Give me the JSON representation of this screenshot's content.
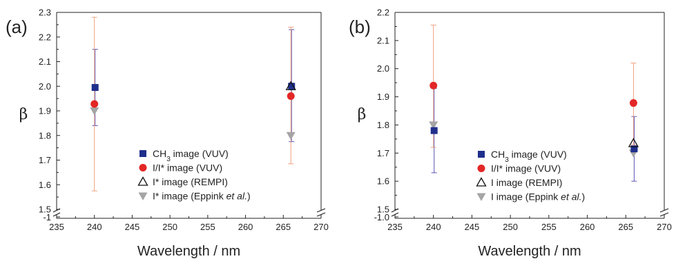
{
  "chart_data": [
    {
      "type": "scatter",
      "panel_label": "(a)",
      "xlabel": "Wavelength / nm",
      "ylabel": "β",
      "xlim": [
        235,
        270
      ],
      "ylim": [
        1.5,
        2.3
      ],
      "yticks": [
        "1.5",
        "1.6",
        "1.7",
        "1.8",
        "1.9",
        "2.0",
        "2.1",
        "2.2",
        "2.3"
      ],
      "ybreak_label": "-1",
      "xticks": [
        "235",
        "240",
        "245",
        "250",
        "255",
        "260",
        "265",
        "270"
      ],
      "legend_position": "bottom-right",
      "series": [
        {
          "name_parts": [
            "CH",
            "3",
            " image (VUV)"
          ],
          "marker": "square",
          "color": "#1f2f8c",
          "err_color": "#5a55b5",
          "points": [
            {
              "x": 240,
              "y": 1.995,
              "lo": 1.84,
              "hi": 2.15
            },
            {
              "x": 266,
              "y": 2.0,
              "lo": 1.775,
              "hi": 2.23
            }
          ]
        },
        {
          "name_parts": [
            "I/I* image (VUV)"
          ],
          "marker": "circle",
          "color": "#e32626",
          "err_color": "#f0a080",
          "points": [
            {
              "x": 240,
              "y": 1.928,
              "lo": 1.575,
              "hi": 2.28
            },
            {
              "x": 266,
              "y": 1.96,
              "lo": 1.685,
              "hi": 2.24
            }
          ]
        },
        {
          "name_parts": [
            "I* image (REMPI)"
          ],
          "marker": "triangle-open",
          "color": "#111111",
          "points": [
            {
              "x": 266,
              "y": 2.0
            }
          ]
        },
        {
          "name_parts": [
            "I* image (Eppink ",
            "et al.",
            ")"
          ],
          "marker": "triangle-down",
          "color": "#a5a5a5",
          "points": [
            {
              "x": 240,
              "y": 1.9
            },
            {
              "x": 266,
              "y": 1.8
            }
          ]
        }
      ]
    },
    {
      "type": "scatter",
      "panel_label": "(b)",
      "xlabel": "Wavelength / nm",
      "ylabel": "β",
      "xlim": [
        235,
        270
      ],
      "ylim": [
        1.5,
        2.2
      ],
      "yticks": [
        "1.5",
        "1.6",
        "1.7",
        "1.8",
        "1.9",
        "2.0",
        "2.1",
        "2.2"
      ],
      "ybreak_label": "-1.0",
      "xticks": [
        "235",
        "240",
        "245",
        "250",
        "255",
        "260",
        "265",
        "270"
      ],
      "legend_position": "bottom-right",
      "series": [
        {
          "name_parts": [
            "CH",
            "3",
            " image (VUV)"
          ],
          "marker": "square",
          "color": "#1f2f8c",
          "err_color": "#5a55b5",
          "points": [
            {
              "x": 240,
              "y": 1.78,
              "lo": 1.63,
              "hi": 1.93
            },
            {
              "x": 266,
              "y": 1.715,
              "lo": 1.6,
              "hi": 1.83
            }
          ]
        },
        {
          "name_parts": [
            "I/I* image (VUV)"
          ],
          "marker": "circle",
          "color": "#e32626",
          "err_color": "#f0a080",
          "points": [
            {
              "x": 240,
              "y": 1.94,
              "lo": 1.72,
              "hi": 2.155
            },
            {
              "x": 266,
              "y": 1.878,
              "lo": 1.73,
              "hi": 2.02
            }
          ]
        },
        {
          "name_parts": [
            "I image (REMPI)"
          ],
          "marker": "triangle-open",
          "color": "#111111",
          "points": [
            {
              "x": 266,
              "y": 1.735
            }
          ]
        },
        {
          "name_parts": [
            "I image (Eppink ",
            "et al.",
            ")"
          ],
          "marker": "triangle-down",
          "color": "#a5a5a5",
          "points": [
            {
              "x": 240,
              "y": 1.8
            },
            {
              "x": 266,
              "y": 1.7
            }
          ]
        }
      ]
    }
  ]
}
